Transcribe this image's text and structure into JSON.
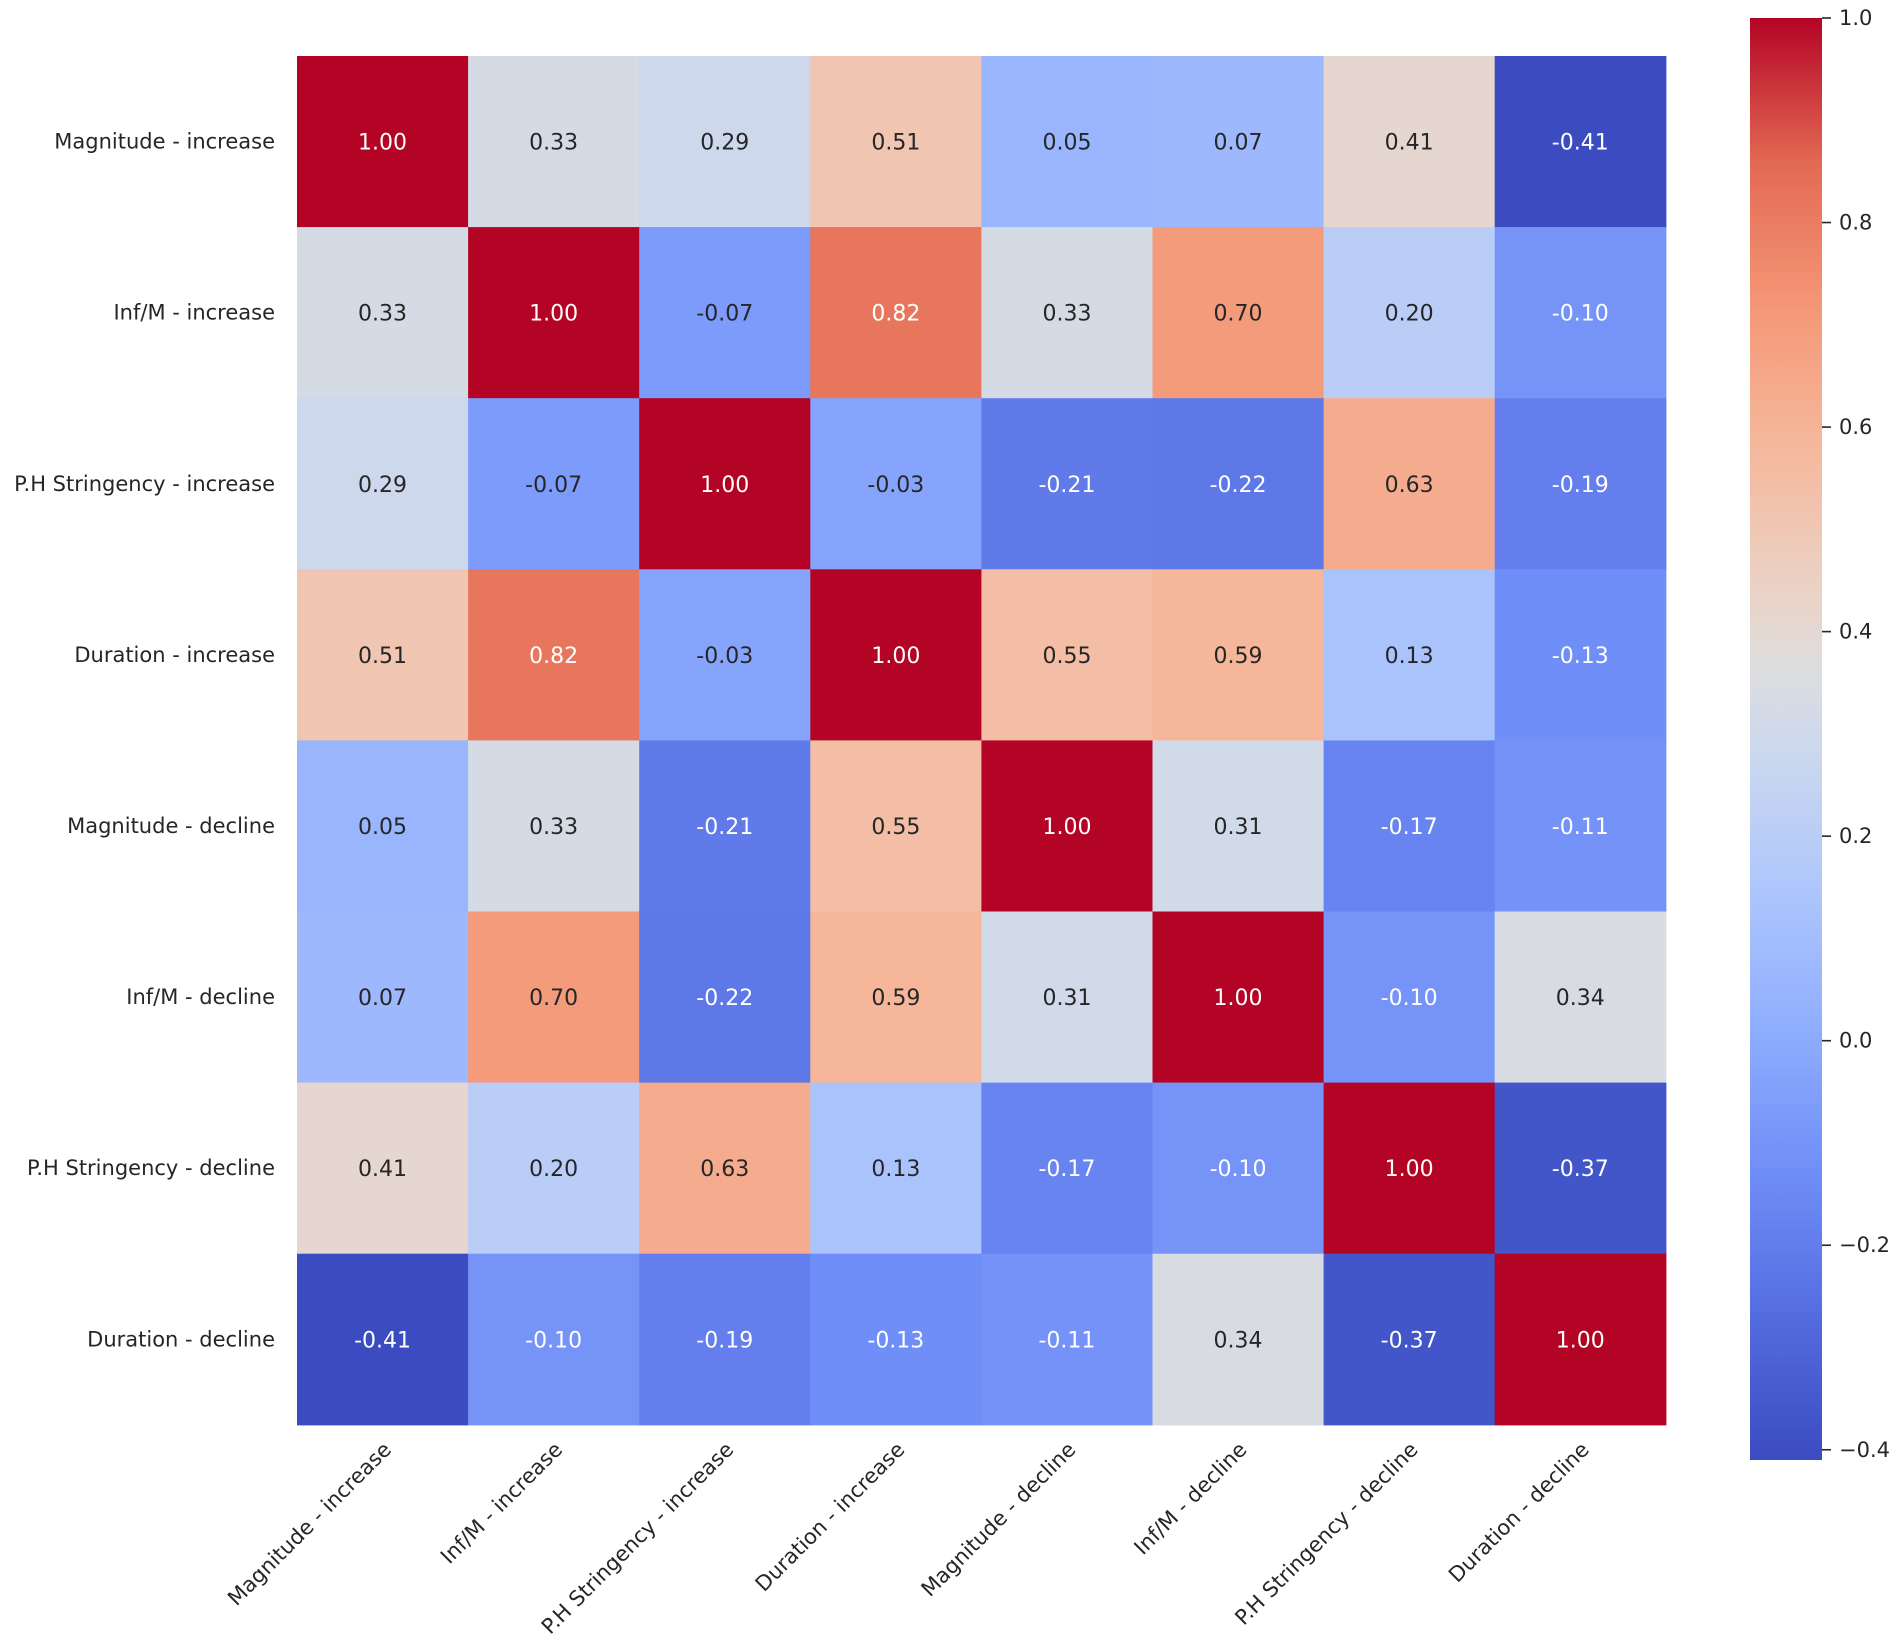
{
  "chart_data": {
    "type": "heatmap",
    "title": "",
    "xlabel": "",
    "ylabel": "",
    "rows": [
      "Magnitude - increase",
      "Inf/M - increase",
      "P.H Stringency - increase",
      "Duration - increase",
      "Magnitude - decline",
      "Inf/M - decline",
      "P.H Stringency - decline",
      "Duration - decline"
    ],
    "columns": [
      "Magnitude - increase",
      "Inf/M - increase",
      "P.H Stringency - increase",
      "Duration - increase",
      "Magnitude - decline",
      "Inf/M - decline",
      "P.H Stringency - decline",
      "Duration - decline"
    ],
    "values": [
      [
        1.0,
        0.33,
        0.29,
        0.51,
        0.05,
        0.07,
        0.41,
        -0.41
      ],
      [
        0.33,
        1.0,
        -0.07,
        0.82,
        0.33,
        0.7,
        0.2,
        -0.1
      ],
      [
        0.29,
        -0.07,
        1.0,
        -0.03,
        -0.21,
        -0.22,
        0.63,
        -0.19
      ],
      [
        0.51,
        0.82,
        -0.03,
        1.0,
        0.55,
        0.59,
        0.13,
        -0.13
      ],
      [
        0.05,
        0.33,
        -0.21,
        0.55,
        1.0,
        0.31,
        -0.17,
        -0.11
      ],
      [
        0.07,
        0.7,
        -0.22,
        0.59,
        0.31,
        1.0,
        -0.1,
        0.34
      ],
      [
        0.41,
        0.2,
        0.63,
        0.13,
        -0.17,
        -0.1,
        1.0,
        -0.37
      ],
      [
        -0.41,
        -0.1,
        -0.19,
        -0.13,
        -0.11,
        0.34,
        -0.37,
        1.0
      ]
    ],
    "value_format": "2 decimals",
    "colormap": "coolwarm",
    "colorbar": {
      "min": -0.41,
      "max": 1.0,
      "ticks": [
        1.0,
        0.8,
        0.6,
        0.4,
        0.2,
        0.0,
        -0.2,
        -0.4
      ],
      "tick_labels": [
        "1.0",
        "0.8",
        "0.6",
        "0.4",
        "0.2",
        "0.0",
        "−0.2",
        "−0.4"
      ]
    },
    "colors": {
      "low": "#3b4cc0",
      "mid": "#dddddd",
      "high": "#b40426"
    },
    "legend_position": "right"
  }
}
